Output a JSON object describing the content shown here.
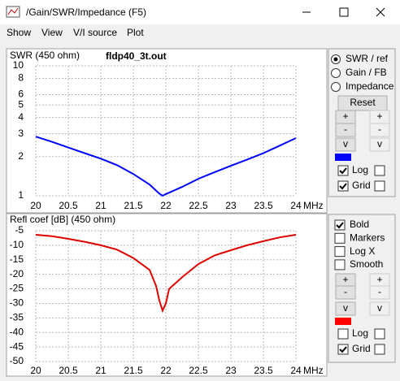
{
  "window": {
    "title": "/Gain/SWR/Impedance (F5)"
  },
  "menu": [
    "Show",
    "View",
    "V/I source",
    "Plot"
  ],
  "chart_data": [
    {
      "type": "line",
      "title": "fldp40_3t.out",
      "y_label": "SWR (450 ohm)",
      "x_unit": "MHz",
      "color": "#0000ff",
      "label_color": "#0000ff",
      "x": [
        20,
        20.25,
        20.5,
        20.75,
        21,
        21.25,
        21.5,
        21.75,
        21.9,
        21.95,
        22,
        22.25,
        22.5,
        22.75,
        23,
        23.25,
        23.5,
        23.75,
        24
      ],
      "values": [
        2.85,
        2.6,
        2.35,
        2.13,
        1.93,
        1.72,
        1.47,
        1.22,
        1.04,
        1.0,
        1.03,
        1.17,
        1.35,
        1.52,
        1.7,
        1.9,
        2.13,
        2.43,
        2.78
      ],
      "xlim": [
        20,
        24
      ],
      "xticks": [
        20,
        20.5,
        21,
        21.5,
        22,
        22.5,
        23,
        23.5,
        24
      ],
      "ylim": [
        1,
        10
      ],
      "yticks": [
        1,
        2,
        3,
        4,
        5,
        6,
        8,
        10
      ],
      "ylog": true,
      "grid": true
    },
    {
      "type": "line",
      "y_label": "Refl coef [dB] (450 ohm)",
      "x_unit": "MHz",
      "color": "#e00000",
      "label_color": "#e00000",
      "x": [
        20,
        20.25,
        20.5,
        20.75,
        21,
        21.25,
        21.5,
        21.75,
        21.85,
        21.9,
        21.95,
        22,
        22.05,
        22.25,
        22.5,
        22.75,
        23,
        23.25,
        23.5,
        23.75,
        24
      ],
      "values": [
        -6.4,
        -6.9,
        -7.8,
        -8.8,
        -10,
        -11.5,
        -14.4,
        -18.5,
        -24,
        -29,
        -32.5,
        -30,
        -25,
        -21,
        -16.5,
        -13.5,
        -11.7,
        -10,
        -8.6,
        -7.3,
        -6.4
      ],
      "xlim": [
        20,
        24
      ],
      "xticks": [
        20,
        20.5,
        21,
        21.5,
        22,
        22.5,
        23,
        23.5,
        24
      ],
      "ylim": [
        -50,
        -5
      ],
      "yticks": [
        -5,
        -10,
        -15,
        -20,
        -25,
        -30,
        -35,
        -40,
        -45,
        -50
      ],
      "ylog": false,
      "grid": true
    }
  ],
  "top_panel": {
    "radios": [
      {
        "label": "SWR / ref",
        "selected": true
      },
      {
        "label": "Gain / FB",
        "selected": false
      },
      {
        "label": "Impedance",
        "selected": false
      }
    ],
    "reset_button": "Reset",
    "step_buttons": [
      [
        "+",
        "+"
      ],
      [
        "-",
        "-"
      ],
      [
        "v",
        "v"
      ]
    ],
    "swatch_color": "#0000ff",
    "checkboxes": [
      {
        "label": "Log",
        "checked": true
      },
      {
        "label": "Grid",
        "checked": true
      }
    ]
  },
  "bottom_panel": {
    "options": [
      {
        "label": "Bold",
        "checked": true
      },
      {
        "label": "Markers",
        "checked": false
      },
      {
        "label": "Log X",
        "checked": false
      },
      {
        "label": "Smooth",
        "checked": false
      }
    ],
    "step_buttons": [
      [
        "+",
        "+"
      ],
      [
        "-",
        "-"
      ],
      [
        "v",
        "v"
      ]
    ],
    "swatch_color": "#ff0000",
    "checkboxes": [
      {
        "label": "Log",
        "checked": false
      },
      {
        "label": "Grid",
        "checked": true
      }
    ]
  }
}
